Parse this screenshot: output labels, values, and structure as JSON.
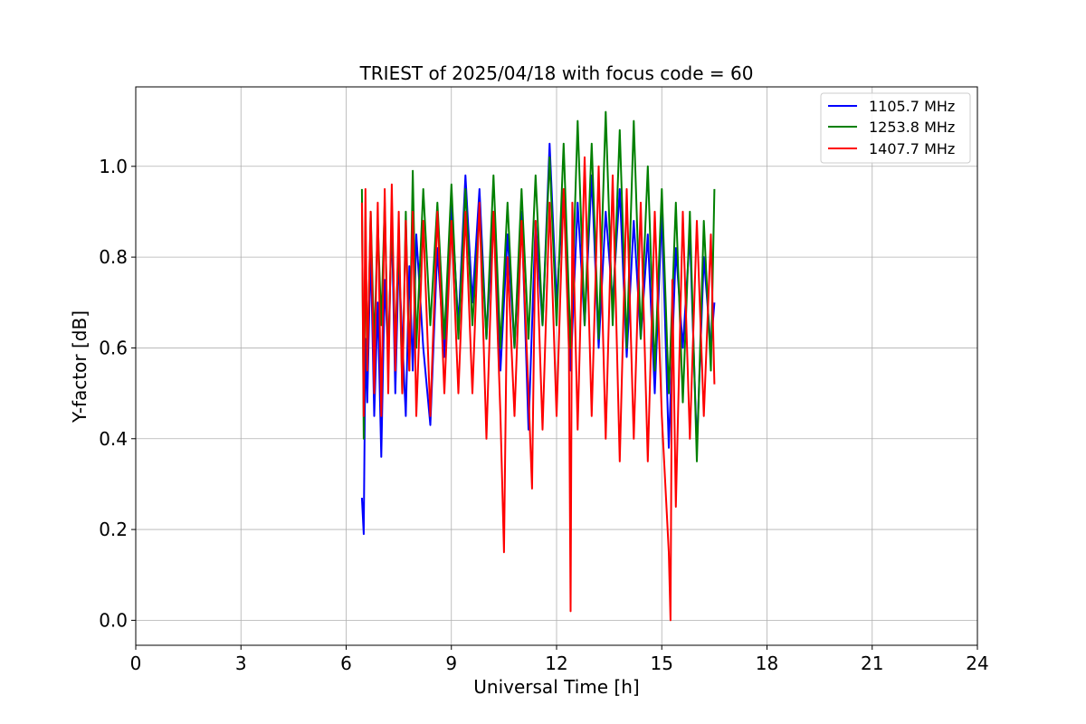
{
  "chart_data": {
    "type": "line",
    "title": "TRIEST of 2025/04/18 with focus code = 60",
    "xlabel": "Universal Time [h]",
    "ylabel": "Y-factor [dB]",
    "xlim": [
      0,
      24
    ],
    "ylim": [
      -0.055,
      1.175
    ],
    "xticks": [
      0,
      3,
      6,
      9,
      12,
      15,
      18,
      21,
      24
    ],
    "yticks": [
      0.0,
      0.2,
      0.4,
      0.6,
      0.8,
      1.0
    ],
    "ytick_labels": [
      "0.0",
      "0.2",
      "0.4",
      "0.6",
      "0.8",
      "1.0"
    ],
    "grid": true,
    "legend_position": "top-right",
    "series": [
      {
        "name": "1105.7 MHz",
        "color": "#0000ff",
        "x": [
          6.45,
          6.5,
          6.55,
          6.6,
          6.7,
          6.8,
          6.9,
          7.0,
          7.1,
          7.2,
          7.3,
          7.4,
          7.5,
          7.6,
          7.7,
          7.8,
          7.9,
          8.0,
          8.2,
          8.4,
          8.6,
          8.8,
          9.0,
          9.2,
          9.4,
          9.6,
          9.8,
          10.0,
          10.2,
          10.4,
          10.6,
          10.8,
          11.0,
          11.2,
          11.4,
          11.6,
          11.8,
          12.0,
          12.2,
          12.4,
          12.6,
          12.8,
          13.0,
          13.2,
          13.4,
          13.6,
          13.8,
          14.0,
          14.2,
          14.4,
          14.6,
          14.8,
          15.0,
          15.2,
          15.4,
          15.6,
          15.8,
          16.0,
          16.2,
          16.4,
          16.5
        ],
        "y": [
          0.27,
          0.19,
          0.62,
          0.48,
          0.82,
          0.45,
          0.7,
          0.36,
          0.75,
          0.58,
          0.88,
          0.5,
          0.8,
          0.62,
          0.45,
          0.78,
          0.55,
          0.85,
          0.6,
          0.43,
          0.82,
          0.58,
          0.92,
          0.65,
          0.98,
          0.7,
          0.95,
          0.62,
          0.9,
          0.55,
          0.85,
          0.6,
          0.9,
          0.42,
          0.88,
          0.65,
          1.05,
          0.7,
          0.95,
          0.55,
          0.92,
          0.65,
          0.98,
          0.6,
          0.9,
          0.7,
          0.95,
          0.58,
          0.88,
          0.62,
          0.85,
          0.5,
          0.9,
          0.38,
          0.82,
          0.6,
          0.85,
          0.38,
          0.8,
          0.6,
          0.7
        ]
      },
      {
        "name": "1253.8 MHz",
        "color": "#008000",
        "x": [
          6.45,
          6.5,
          6.55,
          6.6,
          6.7,
          6.8,
          6.9,
          7.0,
          7.1,
          7.2,
          7.3,
          7.4,
          7.5,
          7.6,
          7.7,
          7.8,
          7.9,
          8.0,
          8.2,
          8.4,
          8.6,
          8.8,
          9.0,
          9.2,
          9.4,
          9.6,
          9.8,
          10.0,
          10.2,
          10.4,
          10.6,
          10.8,
          11.0,
          11.2,
          11.4,
          11.6,
          11.8,
          12.0,
          12.2,
          12.4,
          12.6,
          12.8,
          13.0,
          13.2,
          13.4,
          13.6,
          13.8,
          14.0,
          14.2,
          14.4,
          14.6,
          14.8,
          15.0,
          15.2,
          15.4,
          15.6,
          15.8,
          16.0,
          16.2,
          16.4,
          16.5
        ],
        "y": [
          0.95,
          0.4,
          0.85,
          0.55,
          0.9,
          0.6,
          0.88,
          0.65,
          0.92,
          0.55,
          0.9,
          0.6,
          0.85,
          0.5,
          0.9,
          0.55,
          0.99,
          0.6,
          0.95,
          0.65,
          0.92,
          0.62,
          0.96,
          0.62,
          0.95,
          0.65,
          0.9,
          0.62,
          0.98,
          0.6,
          0.92,
          0.6,
          0.95,
          0.62,
          0.98,
          0.65,
          1.02,
          0.65,
          1.05,
          0.6,
          1.1,
          0.65,
          1.05,
          0.62,
          1.12,
          0.65,
          1.08,
          0.6,
          1.1,
          0.62,
          1.0,
          0.55,
          0.95,
          0.5,
          0.92,
          0.48,
          0.9,
          0.35,
          0.88,
          0.55,
          0.95
        ]
      },
      {
        "name": "1407.7 MHz",
        "color": "#ff0000",
        "x": [
          6.45,
          6.5,
          6.55,
          6.6,
          6.7,
          6.8,
          6.9,
          7.0,
          7.1,
          7.2,
          7.3,
          7.4,
          7.5,
          7.6,
          7.7,
          7.8,
          7.9,
          8.0,
          8.2,
          8.4,
          8.6,
          8.8,
          9.0,
          9.2,
          9.4,
          9.6,
          9.8,
          10.0,
          10.2,
          10.4,
          10.5,
          10.6,
          10.8,
          11.0,
          11.2,
          11.3,
          11.4,
          11.6,
          11.8,
          12.0,
          12.2,
          12.35,
          12.4,
          12.45,
          12.6,
          12.8,
          13.0,
          13.2,
          13.4,
          13.6,
          13.8,
          14.0,
          14.2,
          14.4,
          14.6,
          14.8,
          15.0,
          15.2,
          15.25,
          15.3,
          15.4,
          15.6,
          15.8,
          16.0,
          16.2,
          16.4,
          16.5
        ],
        "y": [
          0.92,
          0.45,
          0.95,
          0.55,
          0.9,
          0.5,
          0.92,
          0.45,
          0.95,
          0.5,
          0.96,
          0.55,
          0.9,
          0.5,
          0.88,
          0.55,
          0.9,
          0.45,
          0.88,
          0.45,
          0.9,
          0.5,
          0.88,
          0.5,
          0.9,
          0.5,
          0.92,
          0.4,
          0.9,
          0.45,
          0.15,
          0.8,
          0.45,
          0.88,
          0.5,
          0.29,
          0.88,
          0.42,
          0.92,
          0.45,
          0.95,
          0.6,
          0.02,
          0.92,
          0.42,
          1.02,
          0.45,
          1.0,
          0.4,
          0.98,
          0.35,
          0.95,
          0.4,
          0.92,
          0.35,
          0.9,
          0.45,
          0.15,
          0.0,
          0.75,
          0.25,
          0.9,
          0.4,
          0.88,
          0.45,
          0.85,
          0.52
        ]
      }
    ]
  }
}
